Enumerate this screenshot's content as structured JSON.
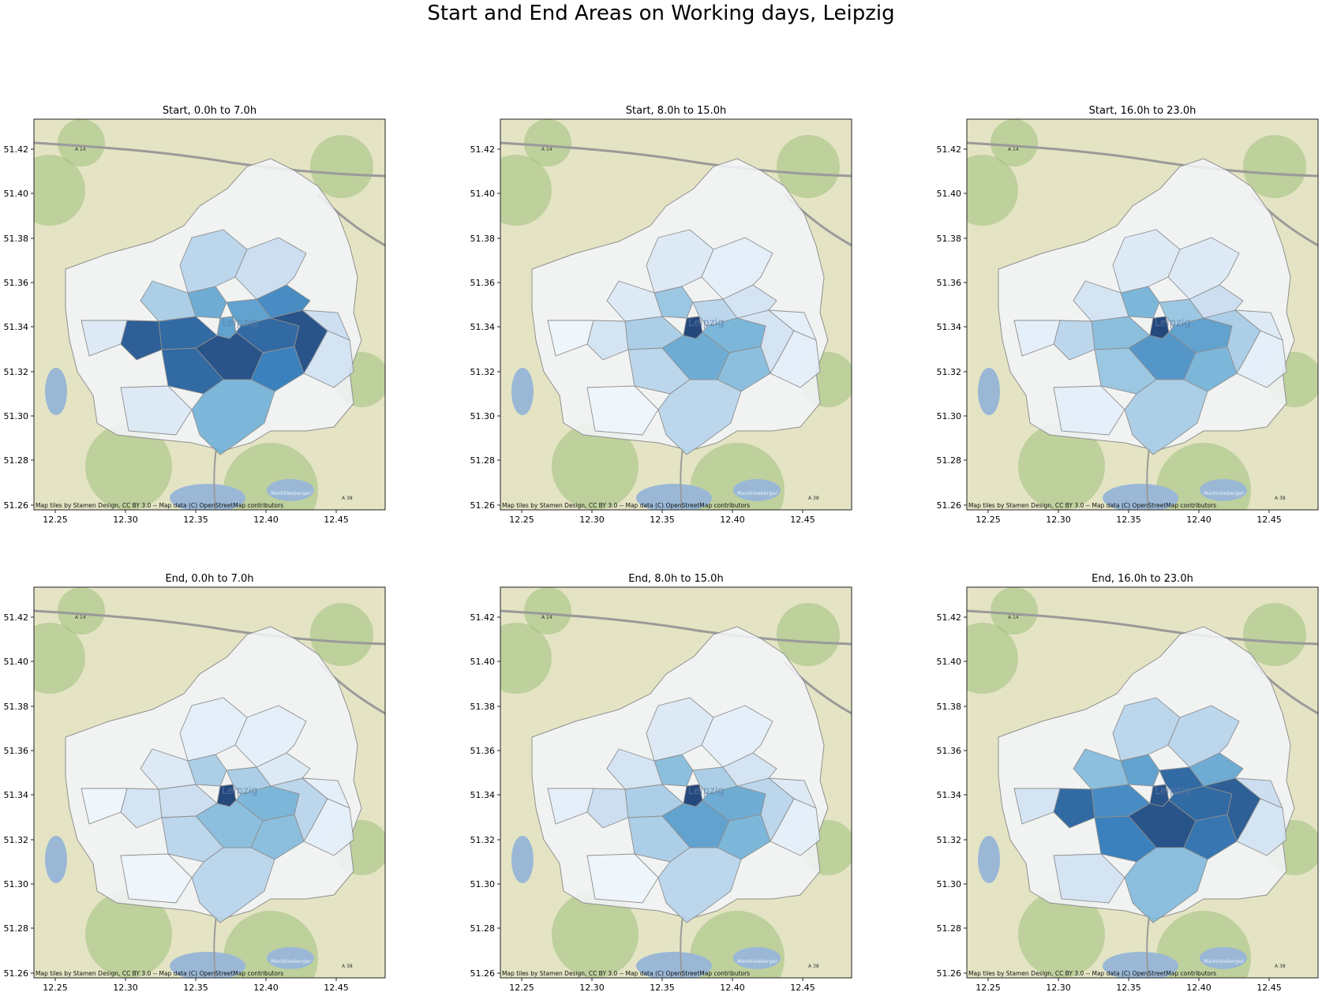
{
  "title": "Start and End Areas on Working days, Leipzig",
  "attribution": "Map tiles by Stamen Design, CC BY 3.0 -- Map data (C) OpenStreetMap contributors",
  "x_ticks": [
    "12.25",
    "12.30",
    "12.35",
    "12.40",
    "12.45"
  ],
  "y_ticks": [
    "51.42",
    "51.40",
    "51.38",
    "51.36",
    "51.34",
    "51.32",
    "51.30",
    "51.28",
    "51.26"
  ],
  "map_labels": {
    "city": "Leipzig",
    "motorway_a14": "A 14",
    "motorway_a38": "A 38",
    "lake": "Markkleeberger"
  },
  "panels": [
    {
      "title": "Start, 0.0h to 7.0h"
    },
    {
      "title": "Start, 8.0h to 15.0h"
    },
    {
      "title": "Start, 16.0h to 23.0h"
    },
    {
      "title": "End, 0.0h to 7.0h"
    },
    {
      "title": "End, 8.0h to 15.0h"
    },
    {
      "title": "End, 16.0h to 23.0h"
    }
  ],
  "colormap": "Blues",
  "colors": {
    "land": "#e4e4c4",
    "green": "#9fbf7c",
    "water": "#9ab8d6",
    "urban": "#d2d2d2",
    "road": "#9a9a9a",
    "district_border": "#8f8f8f"
  }
}
